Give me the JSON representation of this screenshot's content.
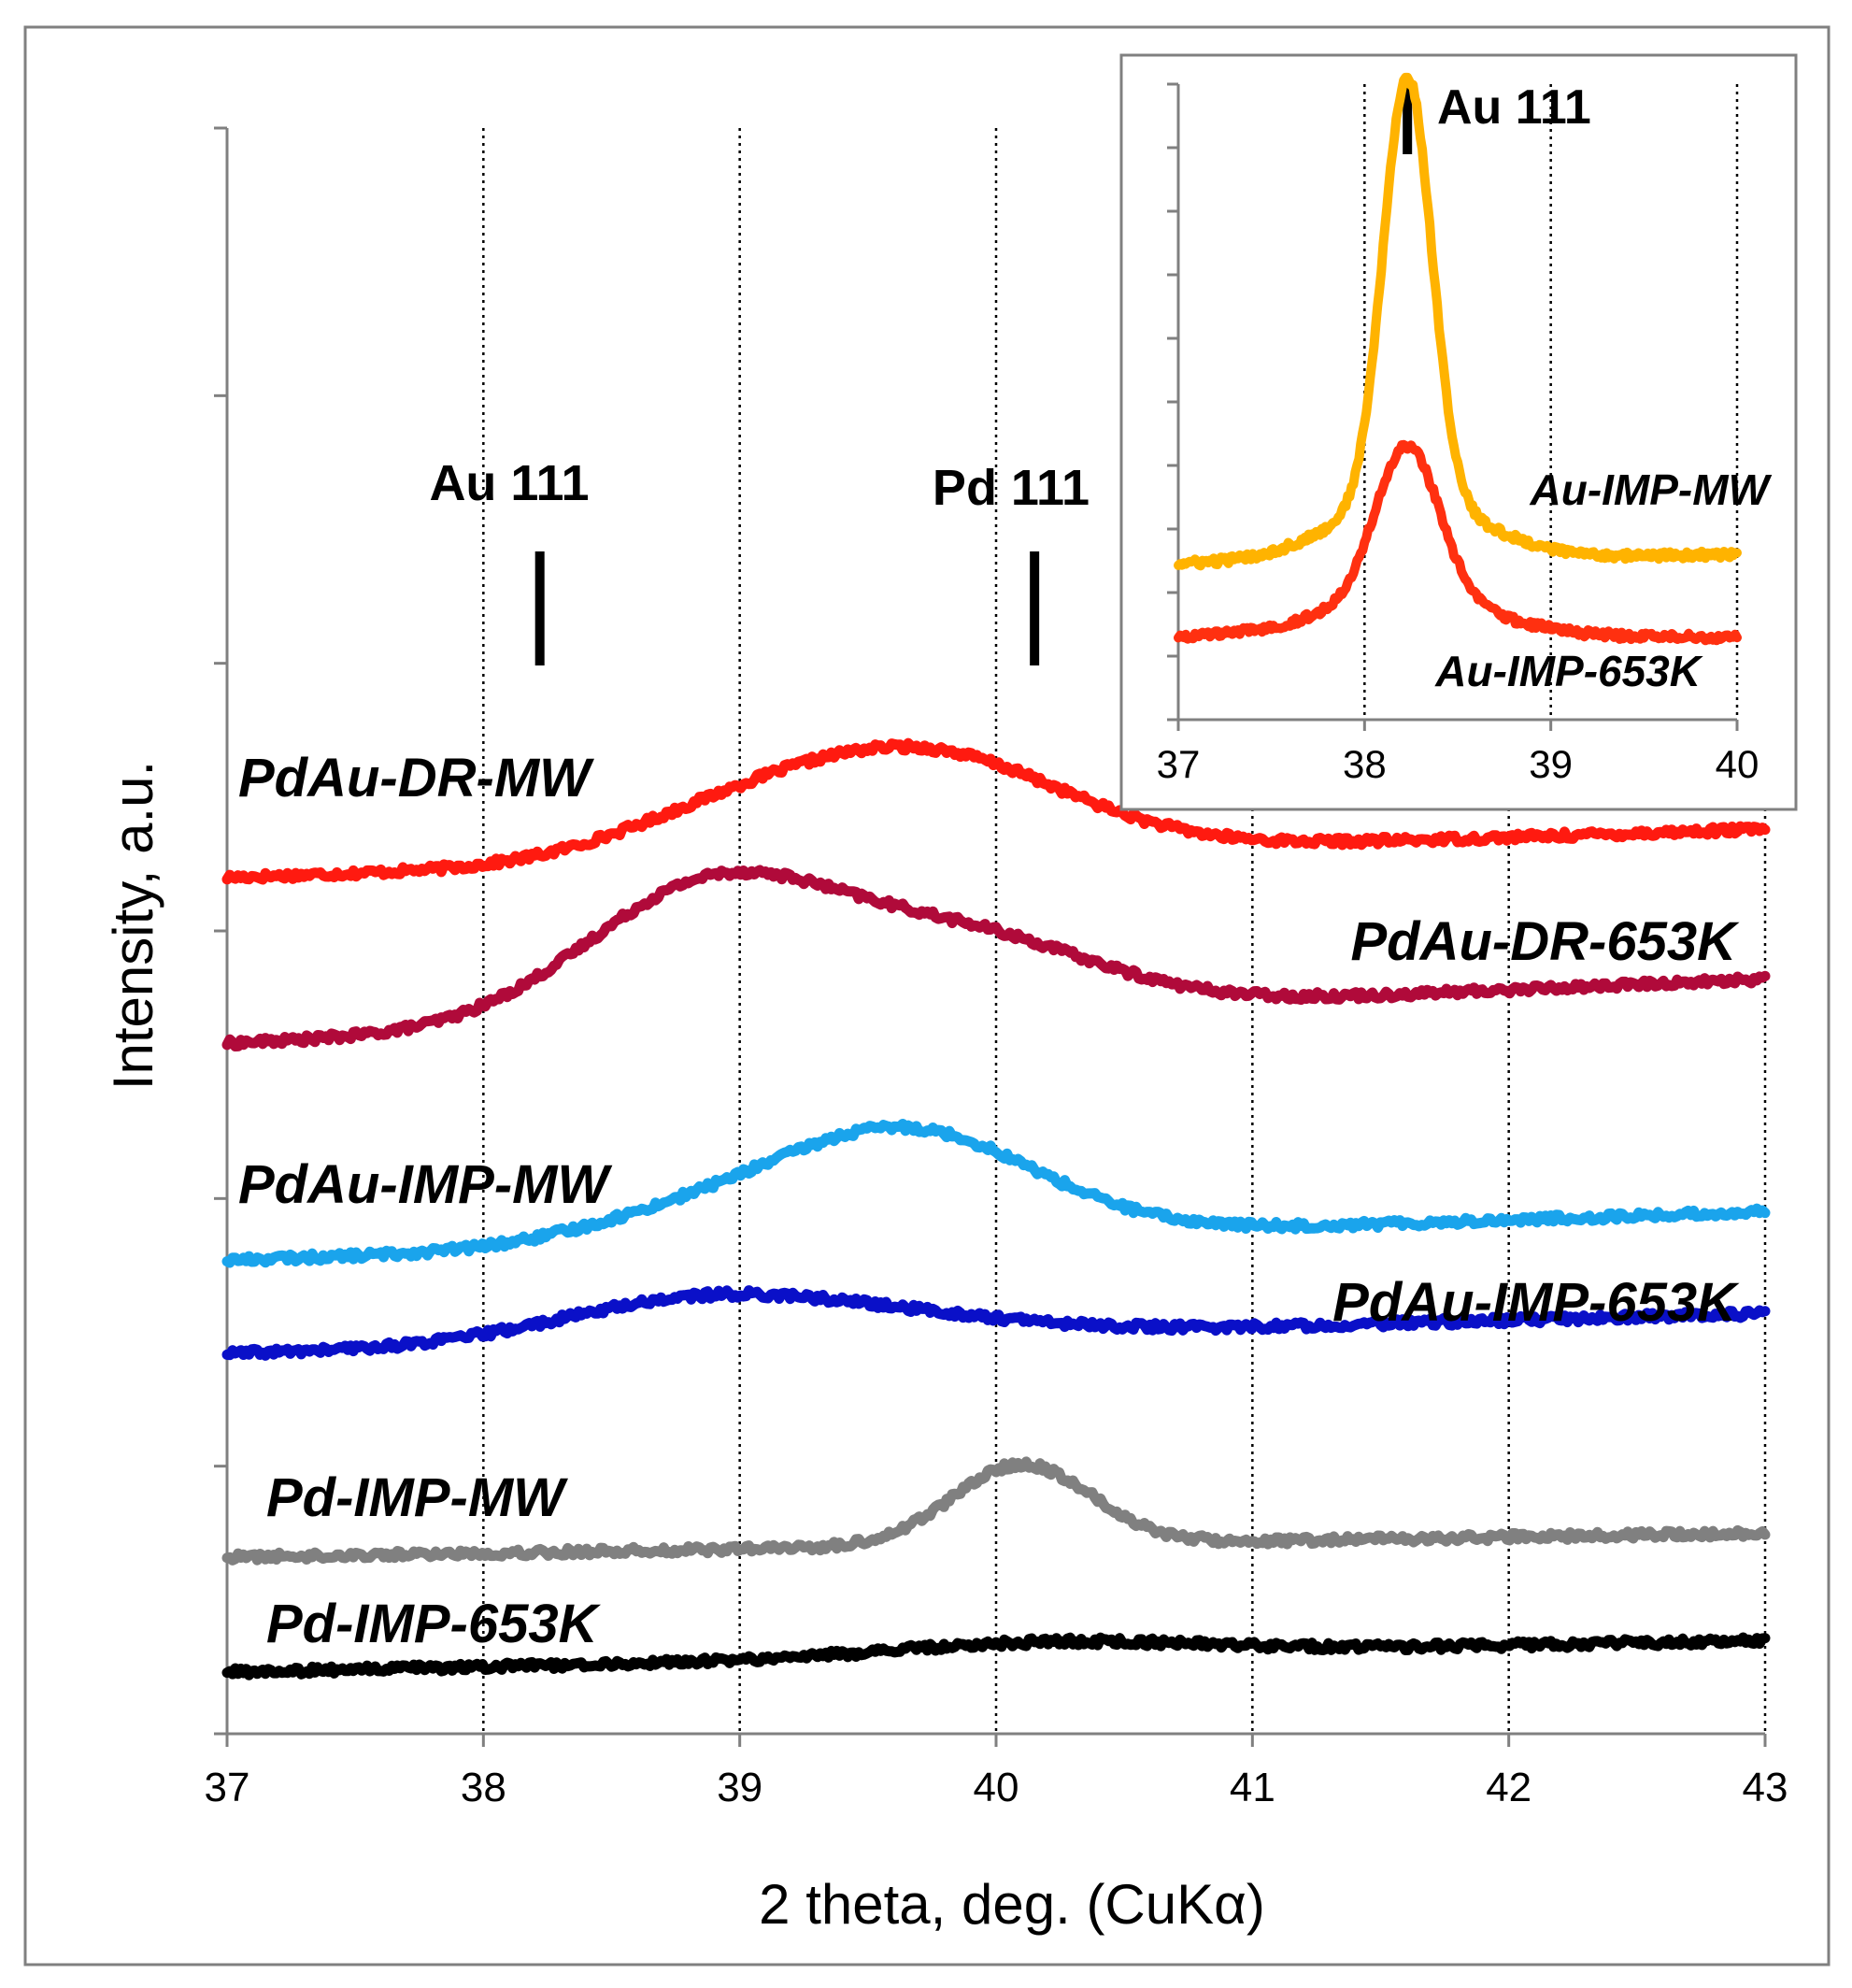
{
  "chart_data": [
    {
      "type": "line",
      "title": "",
      "xlabel": "2 theta, deg. (CuKα)",
      "ylabel": "Intensity, a.u.",
      "xlim": [
        37,
        43
      ],
      "ylim": [
        0,
        6
      ],
      "x_ticks": [
        "37",
        "38",
        "39",
        "40",
        "41",
        "42",
        "43"
      ],
      "grid": "vertical dotted",
      "peak_markers": [
        {
          "label": "Au 111",
          "x": 38.22
        },
        {
          "label": "Pd 111",
          "x": 40.15
        }
      ],
      "series": [
        {
          "name": "PdAu-DR-MW",
          "color": "#ff1a10",
          "baseline": 3.2,
          "slope": 0.03,
          "peaks": [
            {
              "center": 39.7,
              "height": 0.38,
              "width": 0.55
            },
            {
              "center": 38.9,
              "height": 0.12,
              "width": 0.45
            }
          ]
        },
        {
          "name": "PdAu-DR-653K",
          "color": "#b00a3a",
          "baseline": 2.58,
          "slope": 0.04,
          "peaks": [
            {
              "center": 38.9,
              "height": 0.52,
              "width": 0.5
            },
            {
              "center": 39.9,
              "height": 0.26,
              "width": 0.5
            }
          ]
        },
        {
          "name": "PdAu-IMP-MW",
          "color": "#1aa4ec",
          "baseline": 1.77,
          "slope": 0.03,
          "peaks": [
            {
              "center": 39.65,
              "height": 0.4,
              "width": 0.5
            },
            {
              "center": 38.8,
              "height": 0.1,
              "width": 0.45
            }
          ]
        },
        {
          "name": "PdAu-IMP-653K",
          "color": "#0a10c8",
          "baseline": 1.42,
          "slope": 0.025,
          "peaks": [
            {
              "center": 38.85,
              "height": 0.16,
              "width": 0.55
            },
            {
              "center": 39.7,
              "height": 0.05,
              "width": 0.5
            }
          ]
        },
        {
          "name": "Pd-IMP-MW",
          "color": "#808080",
          "baseline": 0.66,
          "slope": 0.015,
          "peaks": [
            {
              "center": 40.1,
              "height": 0.3,
              "width": 0.27
            }
          ]
        },
        {
          "name": "Pd-IMP-653K",
          "color": "#000000",
          "baseline": 0.23,
          "slope": 0.02,
          "peaks": [
            {
              "center": 40.2,
              "height": 0.05,
              "width": 0.6
            }
          ]
        }
      ]
    },
    {
      "type": "line",
      "title": "",
      "xlabel": "",
      "ylabel": "",
      "xlim": [
        37,
        40
      ],
      "ylim": [
        0,
        10
      ],
      "x_ticks": [
        "37",
        "38",
        "39",
        "40"
      ],
      "grid": "vertical dotted",
      "peak_markers": [
        {
          "label": "Au 111",
          "x": 38.23
        }
      ],
      "series": [
        {
          "name": "Au-IMP-MW",
          "color": "#ffb300",
          "baseline": 2.45,
          "slope": 0.05,
          "peaks": [
            {
              "center": 38.23,
              "height": 6.7,
              "width": 0.13
            },
            {
              "center": 38.23,
              "height": 0.9,
              "width": 0.4
            }
          ]
        },
        {
          "name": "Au-IMP-653K",
          "color": "#ff3010",
          "baseline": 1.3,
          "slope": 0.0,
          "peaks": [
            {
              "center": 38.23,
              "height": 2.4,
              "width": 0.17
            },
            {
              "center": 38.23,
              "height": 0.6,
              "width": 0.45
            }
          ]
        }
      ]
    }
  ]
}
